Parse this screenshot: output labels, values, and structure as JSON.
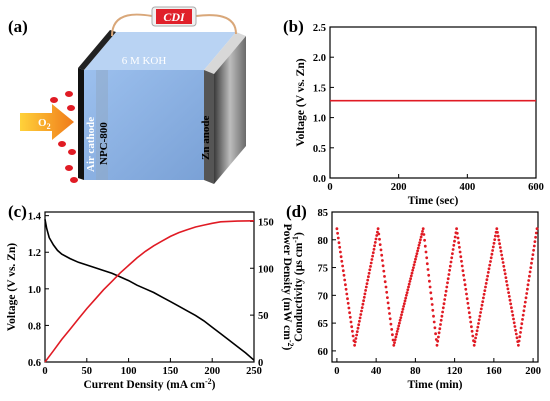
{
  "panels": {
    "a": "(a)",
    "b": "(b)",
    "c": "(c)",
    "d": "(d)"
  },
  "schematic": {
    "display_text": "CDI",
    "electrolyte": "6 M KOH",
    "cathode": "Air cathode",
    "catalyst": "NPC-800",
    "anode": "Zn anode",
    "gas": "O",
    "gas_subscript": "2",
    "colors": {
      "electrolyte": "#8fb4e6",
      "bubble": "#e01b24",
      "arrow": "#f08c1e",
      "display": "#e0202a"
    }
  },
  "chart_data": [
    {
      "id": "b",
      "type": "line",
      "xlabel": "Time (sec)",
      "ylabel": "Voltage (V vs. Zn)",
      "xlim": [
        0,
        600
      ],
      "ylim": [
        0,
        2.5
      ],
      "xticks": [
        0,
        200,
        400,
        600
      ],
      "yticks": [
        0.0,
        0.5,
        1.0,
        1.5,
        2.0,
        2.5
      ],
      "series": [
        {
          "color": "#e01b24",
          "x": [
            0,
            600
          ],
          "y": [
            1.28,
            1.28
          ]
        }
      ]
    },
    {
      "id": "c",
      "type": "line",
      "xlabel": "Current Density (mA cm",
      "xlabel_sup": "-2",
      "xlabel_end": ")",
      "ylabel": "Voltage (V vs. Zn)",
      "y2label": "Power Density (mW cm",
      "y2label_sup": "-2",
      "y2label_end": ")",
      "xlim": [
        0,
        250
      ],
      "ylim": [
        0.6,
        1.42
      ],
      "y2lim": [
        0,
        160
      ],
      "xticks": [
        0,
        50,
        100,
        150,
        200,
        250
      ],
      "yticks": [
        0.6,
        0.8,
        1.0,
        1.2,
        1.4
      ],
      "y2ticks": [
        0,
        50,
        100,
        150
      ],
      "series": [
        {
          "axis": "left",
          "color": "#000000",
          "x": [
            0,
            2,
            5,
            10,
            15,
            20,
            30,
            40,
            50,
            60,
            70,
            80,
            90,
            100,
            110,
            120,
            130,
            140,
            150,
            160,
            170,
            180,
            190,
            200,
            210,
            220,
            230,
            240,
            250
          ],
          "y": [
            1.38,
            1.33,
            1.28,
            1.24,
            1.21,
            1.19,
            1.165,
            1.145,
            1.13,
            1.115,
            1.1,
            1.085,
            1.065,
            1.045,
            1.02,
            1.0,
            0.98,
            0.955,
            0.93,
            0.905,
            0.88,
            0.855,
            0.825,
            0.79,
            0.755,
            0.72,
            0.685,
            0.65,
            0.61
          ]
        },
        {
          "axis": "right",
          "color": "#e01b24",
          "x": [
            0,
            10,
            20,
            30,
            40,
            50,
            60,
            70,
            80,
            90,
            100,
            110,
            120,
            130,
            140,
            150,
            160,
            170,
            180,
            190,
            200,
            210,
            220,
            230,
            240,
            250
          ],
          "y": [
            0,
            12,
            24,
            35,
            46,
            57,
            67,
            77,
            86,
            95,
            103,
            111,
            118,
            124,
            129,
            134,
            138,
            141,
            144,
            146,
            148,
            149.5,
            150,
            150.3,
            150.5,
            150.6
          ]
        }
      ]
    },
    {
      "id": "d",
      "type": "scatter",
      "xlabel": "Time (min)",
      "ylabel": "Conductivity (μs cm",
      "ylabel_sup": "-1",
      "ylabel_end": ")",
      "xlim": [
        -5,
        205
      ],
      "ylim": [
        58,
        85
      ],
      "xticks": [
        0,
        40,
        80,
        120,
        160,
        200
      ],
      "yticks": [
        60,
        65,
        70,
        75,
        80,
        85
      ],
      "series": [
        {
          "color": "#e01b24",
          "x": [
            0,
            18,
            42,
            58,
            88,
            102,
            122,
            140,
            163,
            185,
            204
          ],
          "y": [
            82,
            61,
            82,
            61,
            82,
            61,
            82,
            61,
            82,
            61,
            82
          ]
        }
      ]
    }
  ]
}
